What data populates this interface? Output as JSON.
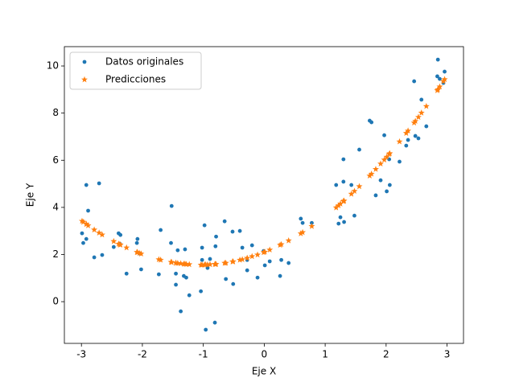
{
  "chart_data": {
    "type": "scatter",
    "xlabel": "Eje X",
    "ylabel": "Eje Y",
    "xlim": [
      -3.28,
      3.27
    ],
    "ylim": [
      -1.77,
      10.82
    ],
    "xticks": [
      -3,
      -2,
      -1,
      0,
      1,
      2,
      3
    ],
    "yticks": [
      0,
      2,
      4,
      6,
      8,
      10
    ],
    "legend": "upper left",
    "series": [
      {
        "name": "Datos originales",
        "color": "#1f77b4",
        "marker": "circle",
        "x": [
          -2.99,
          -2.97,
          -2.92,
          -2.89,
          -2.92,
          -2.79,
          -2.71,
          -2.66,
          -2.47,
          -2.39,
          -2.36,
          -2.37,
          -2.26,
          -2.09,
          -2.08,
          -2.05,
          -2.02,
          -1.73,
          -1.7,
          -1.53,
          -1.52,
          -1.45,
          -1.45,
          -1.42,
          -1.37,
          -1.32,
          -1.3,
          -1.28,
          -1.23,
          -1.04,
          -1.02,
          -1.02,
          -0.98,
          -0.96,
          -0.93,
          -0.89,
          -0.81,
          -0.8,
          -0.79,
          -0.65,
          -0.63,
          -0.52,
          -0.51,
          -0.4,
          -0.36,
          -0.28,
          -0.28,
          -0.2,
          -0.11,
          -0.01,
          0.01,
          0.09,
          0.26,
          0.28,
          0.4,
          0.6,
          0.63,
          0.78,
          1.18,
          1.22,
          1.25,
          1.3,
          1.3,
          1.31,
          1.43,
          1.48,
          1.56,
          1.73,
          1.76,
          1.83,
          1.91,
          1.97,
          2.01,
          2.06,
          2.05,
          2.22,
          2.33,
          2.36,
          2.46,
          2.48,
          2.53,
          2.58,
          2.66,
          2.84,
          2.85,
          2.88,
          2.94,
          2.96
        ],
        "values": [
          2.9,
          2.49,
          4.95,
          3.86,
          2.66,
          1.88,
          5.02,
          1.98,
          2.32,
          2.9,
          2.83,
          2.46,
          1.19,
          2.49,
          2.66,
          2.05,
          1.37,
          1.16,
          3.04,
          2.49,
          4.06,
          1.19,
          0.72,
          2.18,
          -0.41,
          1.09,
          2.22,
          1.02,
          0.27,
          0.44,
          1.77,
          2.29,
          3.24,
          -1.19,
          1.43,
          1.81,
          -0.89,
          2.35,
          2.76,
          3.41,
          0.96,
          2.97,
          0.75,
          3.0,
          2.29,
          1.77,
          1.33,
          2.39,
          1.02,
          2.15,
          1.54,
          1.71,
          1.09,
          1.77,
          1.64,
          3.52,
          3.34,
          3.34,
          4.95,
          3.31,
          3.58,
          5.09,
          6.04,
          3.38,
          4.95,
          3.65,
          6.45,
          7.68,
          7.61,
          4.51,
          5.15,
          7.06,
          4.68,
          4.95,
          6.04,
          5.94,
          6.62,
          6.86,
          9.35,
          7.03,
          6.93,
          8.57,
          7.44,
          9.56,
          10.27,
          9.45,
          9.28,
          9.76
        ]
      },
      {
        "name": "Predicciones",
        "color": "#ff7f0e",
        "marker": "star",
        "x": [
          -2.99,
          -2.97,
          -2.92,
          -2.89,
          -2.92,
          -2.79,
          -2.71,
          -2.66,
          -2.47,
          -2.39,
          -2.36,
          -2.37,
          -2.26,
          -2.09,
          -2.08,
          -2.05,
          -2.02,
          -1.73,
          -1.7,
          -1.53,
          -1.52,
          -1.45,
          -1.45,
          -1.42,
          -1.37,
          -1.32,
          -1.3,
          -1.28,
          -1.23,
          -1.04,
          -1.02,
          -1.02,
          -0.98,
          -0.96,
          -0.93,
          -0.89,
          -0.81,
          -0.8,
          -0.79,
          -0.65,
          -0.63,
          -0.52,
          -0.51,
          -0.4,
          -0.36,
          -0.28,
          -0.28,
          -0.2,
          -0.11,
          -0.01,
          0.01,
          0.09,
          0.26,
          0.28,
          0.4,
          0.6,
          0.63,
          0.78,
          1.18,
          1.22,
          1.25,
          1.3,
          1.3,
          1.31,
          1.43,
          1.48,
          1.56,
          1.73,
          1.76,
          1.83,
          1.91,
          1.97,
          2.01,
          2.06,
          2.05,
          2.22,
          2.33,
          2.36,
          2.46,
          2.48,
          2.53,
          2.58,
          2.66,
          2.84,
          2.85,
          2.88,
          2.94,
          2.96
        ],
        "values": [
          3.42,
          3.38,
          3.29,
          3.23,
          3.29,
          3.05,
          2.92,
          2.84,
          2.56,
          2.45,
          2.41,
          2.42,
          2.29,
          2.1,
          2.09,
          2.06,
          2.03,
          1.79,
          1.77,
          1.68,
          1.67,
          1.64,
          1.64,
          1.63,
          1.62,
          1.6,
          1.6,
          1.59,
          1.58,
          1.56,
          1.56,
          1.56,
          1.57,
          1.57,
          1.57,
          1.58,
          1.59,
          1.59,
          1.59,
          1.64,
          1.64,
          1.7,
          1.7,
          1.77,
          1.79,
          1.85,
          1.85,
          1.92,
          1.99,
          2.09,
          2.11,
          2.2,
          2.4,
          2.43,
          2.59,
          2.89,
          2.94,
          3.2,
          3.99,
          4.08,
          4.15,
          4.26,
          4.26,
          4.28,
          4.57,
          4.69,
          4.89,
          5.34,
          5.42,
          5.62,
          5.85,
          6.02,
          6.14,
          6.29,
          6.26,
          6.79,
          7.15,
          7.25,
          7.59,
          7.66,
          7.83,
          8.01,
          8.29,
          8.96,
          9.0,
          9.12,
          9.35,
          9.43
        ]
      }
    ]
  }
}
